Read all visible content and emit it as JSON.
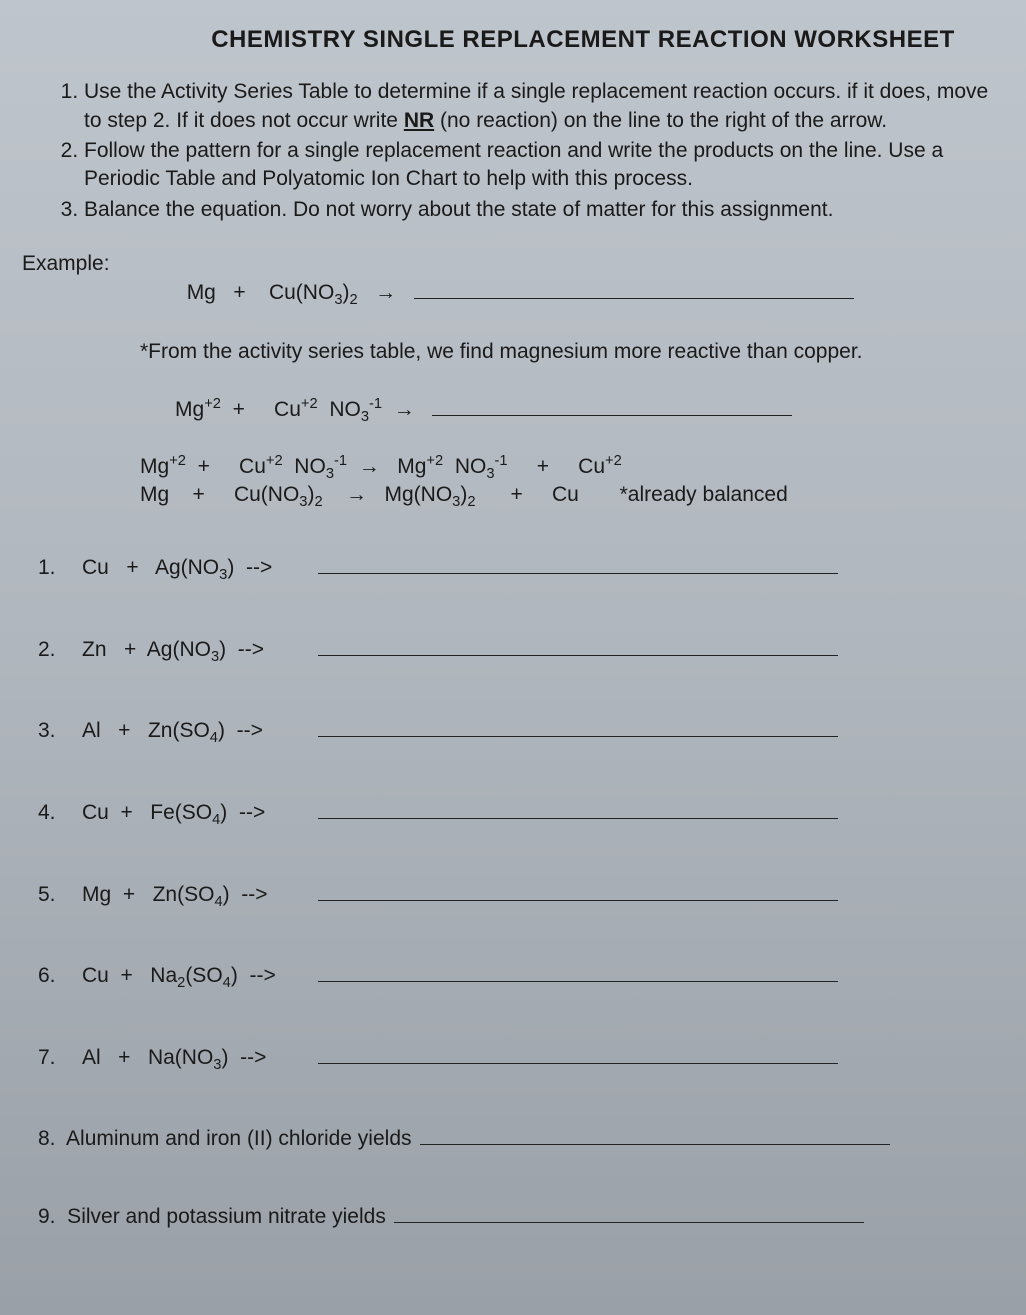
{
  "title": "CHEMISTRY SINGLE REPLACEMENT REACTION WORKSHEET",
  "instructions": [
    {
      "pre": "Use the Activity Series Table to determine if a single replacement reaction occurs. if it does, move to step 2. If it does not occur write ",
      "bold": "NR",
      "post": " (no reaction) on the line to the right of the arrow."
    },
    {
      "pre": "Follow the pattern for a single replacement reaction and write the products on the line.  Use a Periodic Table and Polyatomic Ion Chart to help with this process.",
      "bold": "",
      "post": ""
    },
    {
      "pre": "Balance the equation. Do not worry about the state of matter for this assignment.",
      "bold": "",
      "post": ""
    }
  ],
  "example": {
    "label": "Example:",
    "line1_html": "Mg   +    Cu(NO<span class='sub'>3</span>)<span class='sub'>2</span>   →   ",
    "note": "*From the activity series table, we find magnesium more reactive than copper.",
    "line2_html": "Mg<span class='sup'>+2</span>  +     Cu<span class='sup'>+2</span>  NO<span class='sub'>3</span><span class='sup'>-1</span>  →   ",
    "line3_html": "Mg<span class='sup'>+2</span>  +     Cu<span class='sup'>+2</span>  NO<span class='sub'>3</span><span class='sup'>-1</span>  →   Mg<span class='sup'>+2</span>  NO<span class='sub'>3</span><span class='sup'>-1</span>     +     Cu<span class='sup'>+2</span>",
    "line4_html": "Mg    +     Cu(NO<span class='sub'>3</span>)<span class='sub'>2</span>    →   Mg(NO<span class='sub'>3</span>)<span class='sub'>2</span>      +     Cu       *already balanced"
  },
  "problems": [
    {
      "num": "1.",
      "lhs_html": "Cu   +   Ag(NO<span class='sub'>3</span>)  -->"
    },
    {
      "num": "2.",
      "lhs_html": "Zn   +  Ag(NO<span class='sub'>3</span>)  -->"
    },
    {
      "num": "3.",
      "lhs_html": "Al   +   Zn(SO<span class='sub'>4</span>)  -->"
    },
    {
      "num": "4.",
      "lhs_html": "Cu  +   Fe(SO<span class='sub'>4</span>)  -->"
    },
    {
      "num": "5.",
      "lhs_html": "Mg  +   Zn(SO<span class='sub'>4</span>)  -->"
    },
    {
      "num": "6.",
      "lhs_html": "Cu  +   Na<span class='sub'>2</span>(SO<span class='sub'>4</span>)  -->"
    },
    {
      "num": "7.",
      "lhs_html": "Al   +   Na(NO<span class='sub'>3</span>)  -->"
    }
  ],
  "word_problems": [
    {
      "num": "8.",
      "text": "Aluminum and iron (II) chloride yields"
    },
    {
      "num": "9.",
      "text": "Silver and potassium nitrate yields"
    }
  ]
}
